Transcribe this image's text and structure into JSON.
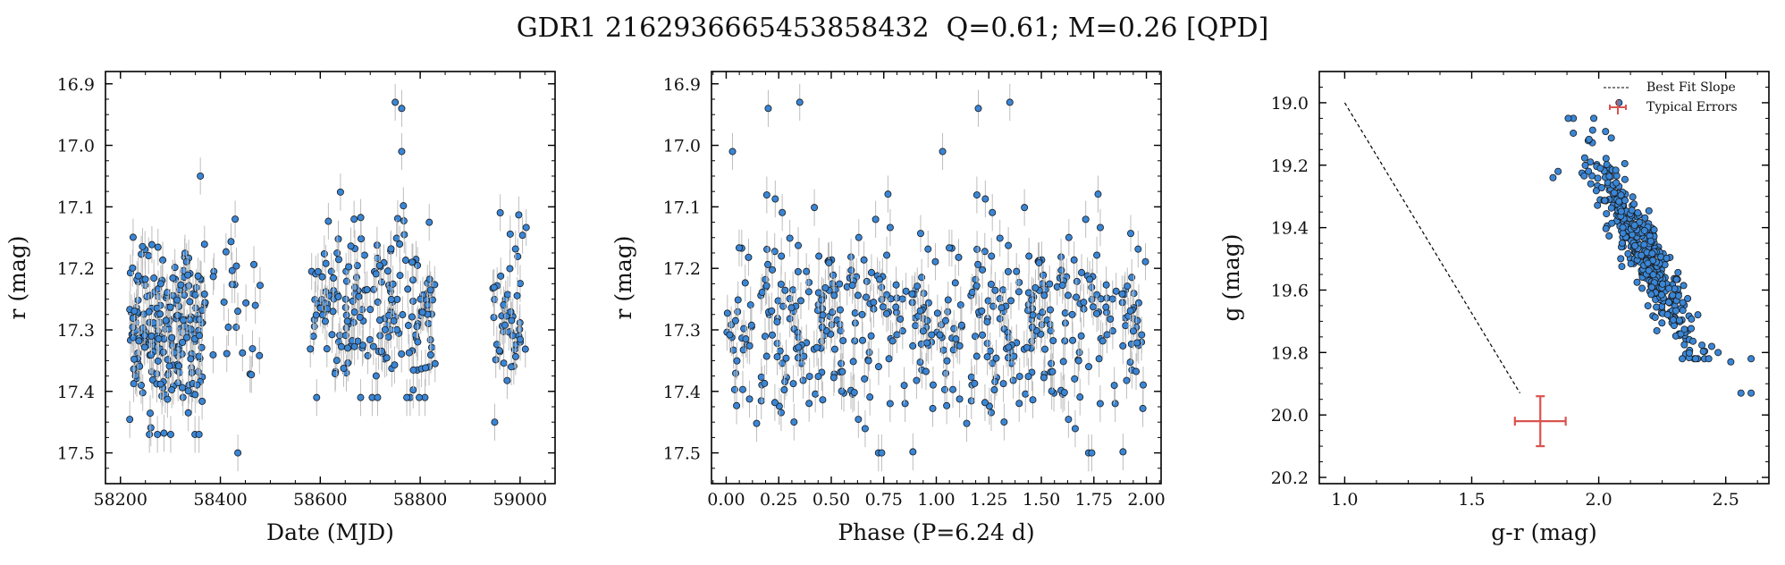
{
  "title": "GDR1 2162936665453858432  Q=0.61; M=0.26 [QPD]",
  "style": {
    "point_color": "#3a86d6",
    "point_edge": "#1a1a1a",
    "errorbar_color": "#bdbdbd",
    "typical_error_color": "#d9534f"
  },
  "chart_data": [
    {
      "type": "scatter",
      "xlabel": "Date (MJD)",
      "ylabel": "r (mag)",
      "xlim": [
        58170,
        59070
      ],
      "ylim": [
        17.55,
        16.88
      ],
      "xticks": [
        58200,
        58400,
        58600,
        58800,
        59000
      ],
      "xtick_labels": [
        "58200",
        "58400",
        "58600",
        "58800",
        "59000"
      ],
      "yticks": [
        16.9,
        17.0,
        17.1,
        17.2,
        17.3,
        17.4,
        17.5
      ],
      "ytick_labels": [
        "16.9",
        "17.0",
        "17.1",
        "17.2",
        "17.3",
        "17.4",
        "17.5"
      ],
      "segments": [
        {
          "x0": 58218,
          "x1": 58370,
          "n": 230,
          "mean": 17.3,
          "sd": 0.075,
          "lo": 17.04,
          "hi": 17.47
        },
        {
          "x0": 58378,
          "x1": 58480,
          "n": 24,
          "mean": 17.27,
          "sd": 0.08,
          "lo": 17.12,
          "hi": 17.5
        },
        {
          "x0": 58580,
          "x1": 58830,
          "n": 200,
          "mean": 17.26,
          "sd": 0.07,
          "lo": 16.93,
          "hi": 17.41
        },
        {
          "x0": 58945,
          "x1": 59015,
          "n": 50,
          "mean": 17.28,
          "sd": 0.07,
          "lo": 17.08,
          "hi": 17.45
        }
      ],
      "error": 0.03
    },
    {
      "type": "scatter",
      "xlabel": "Phase (P=6.24 d)",
      "ylabel": "r (mag)",
      "xlim": [
        -0.07,
        2.07
      ],
      "ylim": [
        17.55,
        16.88
      ],
      "xticks": [
        0.0,
        0.25,
        0.5,
        0.75,
        1.0,
        1.25,
        1.5,
        1.75,
        2.0
      ],
      "xtick_labels": [
        "0.00",
        "0.25",
        "0.50",
        "0.75",
        "1.00",
        "1.25",
        "1.50",
        "1.75",
        "2.00"
      ],
      "yticks": [
        16.9,
        17.0,
        17.1,
        17.2,
        17.3,
        17.4,
        17.5
      ],
      "ytick_labels": [
        "16.9",
        "17.0",
        "17.1",
        "17.2",
        "17.3",
        "17.4",
        "17.5"
      ],
      "n": 500,
      "mean": 17.28,
      "sd": 0.075,
      "lo": 16.93,
      "hi": 17.5,
      "error": 0.03
    },
    {
      "type": "scatter",
      "xlabel": "g-r (mag)",
      "ylabel": "g (mag)",
      "xlim": [
        0.9,
        2.67
      ],
      "ylim": [
        20.22,
        18.9
      ],
      "xticks": [
        1.0,
        1.5,
        2.0,
        2.5
      ],
      "xtick_labels": [
        "1.0",
        "1.5",
        "2.0",
        "2.5"
      ],
      "yticks": [
        19.0,
        19.2,
        19.4,
        19.6,
        19.8,
        20.0,
        20.2
      ],
      "ytick_labels": [
        "19.0",
        "19.2",
        "19.4",
        "19.6",
        "19.8",
        "20.0",
        "20.2"
      ],
      "n": 420,
      "slope_line": {
        "x": [
          1.0,
          1.69
        ],
        "y": [
          19.0,
          19.93
        ]
      },
      "cloud": {
        "gr_center": 2.18,
        "g_center": 19.48,
        "gr_per_g": 0.58,
        "sd_along": 0.15,
        "sd_across": 0.045
      },
      "outliers": [
        [
          1.82,
          19.24
        ],
        [
          1.84,
          19.22
        ],
        [
          1.88,
          19.05
        ],
        [
          2.08,
          19.0
        ],
        [
          2.52,
          19.83
        ],
        [
          2.56,
          19.93
        ],
        [
          2.6,
          19.93
        ],
        [
          2.6,
          19.82
        ],
        [
          2.47,
          19.8
        ]
      ],
      "typical_error": {
        "x": 1.77,
        "y": 20.02,
        "xerr": 0.1,
        "yerr": 0.08
      },
      "legend": [
        {
          "label": "Best Fit Slope",
          "style": "dashed-line"
        },
        {
          "label": "Typical Errors",
          "style": "errorbar"
        }
      ],
      "legend_loc": "upper right"
    }
  ]
}
